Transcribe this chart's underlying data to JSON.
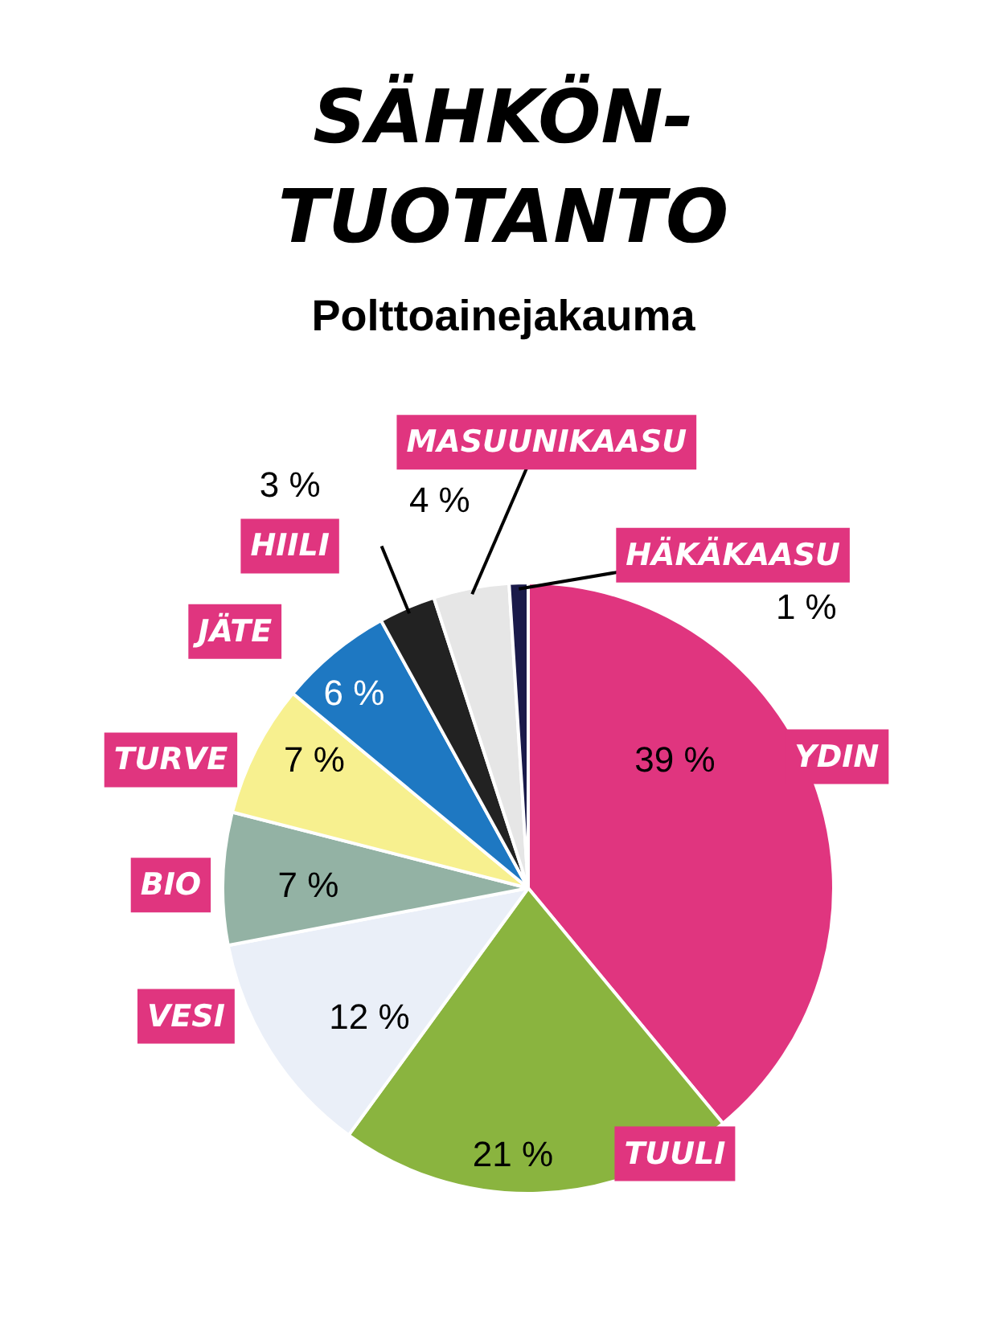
{
  "chart_data": {
    "type": "pie",
    "title": "SÄHKÖN-\nTUOTANTO",
    "subtitle": "Polttoainejakauma",
    "categories": [
      "YDIN",
      "TUULI",
      "VESI",
      "BIO",
      "TURVE",
      "JÄTE",
      "HIILI",
      "MASUUNIKAASU",
      "HÄKÄKAASU"
    ],
    "values": [
      39,
      21,
      12,
      7,
      7,
      6,
      3,
      4,
      1
    ],
    "colors": [
      "#e0357f",
      "#8ab43f",
      "#eaeff8",
      "#93b2a4",
      "#f7f08f",
      "#1e78c2",
      "#222222",
      "#e6e6e6",
      "#1a1a4a"
    ],
    "value_labels": [
      "39 %",
      "21 %",
      "12 %",
      "7 %",
      "7 %",
      "6 %",
      "3 %",
      "4 %",
      "1 %"
    ]
  }
}
